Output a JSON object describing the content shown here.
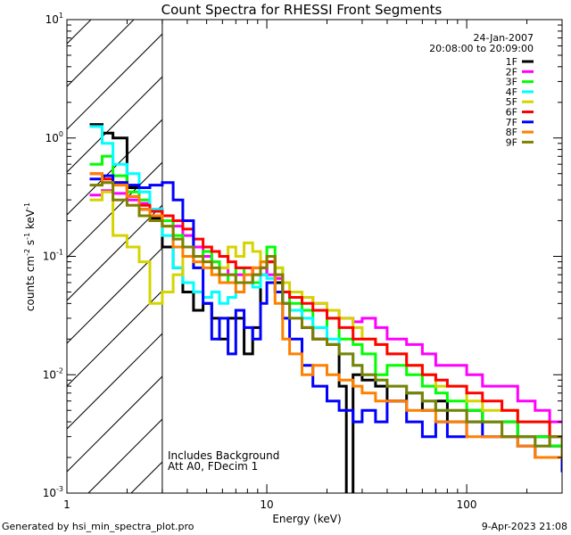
{
  "chart_data": {
    "type": "line",
    "title": "Count Spectra for RHESSI Front Segments",
    "xlabel": "Energy (keV)",
    "ylabel": {
      "base": "counts cm",
      "exp1": "-2",
      "mid": " s",
      "exp2": "-1",
      "unit": " keV",
      "exp3": "-1"
    },
    "xscale": "log",
    "yscale": "log",
    "xlim": [
      1,
      300
    ],
    "ylim": [
      0.001,
      10
    ],
    "xticks": [
      {
        "value": 1,
        "label": "1"
      },
      {
        "value": 10,
        "label": "10"
      },
      {
        "value": 100,
        "label": "100"
      }
    ],
    "yticks": [
      {
        "value": 10,
        "base": "10",
        "exp": "1"
      },
      {
        "value": 1,
        "base": "10",
        "exp": "0"
      },
      {
        "value": 0.1,
        "base": "10",
        "exp": "-1"
      },
      {
        "value": 0.01,
        "base": "10",
        "exp": "-2"
      },
      {
        "value": 0.001,
        "base": "10",
        "exp": "-3"
      }
    ],
    "date": "24-Jan-2007",
    "time_range": "20:08:00 to 20:09:00",
    "annotation_lines": [
      "Includes Background",
      "Att A0, FDecim 1"
    ],
    "hatched_below_keV": 3,
    "legend_position": "top-right",
    "series": [
      {
        "name": "1F",
        "color": "#000000",
        "x": [
          1.3,
          1.5,
          1.7,
          2.0,
          2.3,
          2.6,
          3.0,
          3.4,
          3.8,
          4.3,
          4.8,
          5.3,
          5.8,
          6.4,
          7.0,
          7.7,
          8.5,
          9.3,
          10.0,
          11,
          12,
          13,
          15,
          17,
          20,
          23,
          25,
          27,
          30,
          35,
          40,
          50,
          60,
          70,
          80,
          100,
          120,
          150,
          180,
          220,
          260,
          300
        ],
        "y": [
          1.3,
          1.1,
          1.0,
          0.38,
          0.25,
          0.21,
          0.12,
          0.08,
          0.05,
          0.035,
          0.04,
          0.03,
          0.02,
          0.03,
          0.03,
          0.015,
          0.025,
          0.07,
          0.09,
          0.06,
          0.04,
          0.035,
          0.025,
          0.02,
          0.018,
          0.008,
          0.0008,
          0.01,
          0.009,
          0.008,
          0.006,
          0.007,
          0.005,
          0.006,
          0.004,
          0.005,
          0.004,
          0.004,
          0.003,
          0.003,
          0.0025,
          0.002
        ]
      },
      {
        "name": "2F",
        "color": "#ff00ff",
        "x": [
          1.3,
          1.5,
          1.7,
          2.0,
          2.3,
          2.6,
          3.0,
          3.4,
          3.8,
          4.3,
          4.8,
          5.3,
          5.8,
          6.4,
          7.0,
          7.7,
          8.5,
          9.3,
          10.0,
          11,
          12,
          13,
          15,
          17,
          20,
          23,
          27,
          30,
          35,
          40,
          50,
          60,
          70,
          80,
          100,
          120,
          150,
          180,
          220,
          260,
          300
        ],
        "y": [
          0.33,
          0.36,
          0.34,
          0.3,
          0.28,
          0.25,
          0.22,
          0.18,
          0.15,
          0.12,
          0.1,
          0.09,
          0.08,
          0.07,
          0.07,
          0.06,
          0.08,
          0.08,
          0.07,
          0.065,
          0.05,
          0.05,
          0.045,
          0.04,
          0.035,
          0.03,
          0.028,
          0.03,
          0.025,
          0.02,
          0.018,
          0.015,
          0.012,
          0.012,
          0.01,
          0.008,
          0.008,
          0.006,
          0.005,
          0.004,
          0.004
        ]
      },
      {
        "name": "3F",
        "color": "#00ff00",
        "x": [
          1.3,
          1.5,
          1.7,
          2.0,
          2.3,
          2.6,
          3.0,
          3.4,
          3.8,
          4.3,
          4.8,
          5.3,
          5.8,
          6.4,
          7.0,
          7.7,
          8.5,
          9.3,
          10.0,
          11,
          12,
          13,
          15,
          17,
          20,
          23,
          27,
          30,
          35,
          40,
          50,
          60,
          70,
          80,
          100,
          120,
          150,
          180,
          220,
          260,
          300
        ],
        "y": [
          0.6,
          0.7,
          0.48,
          0.35,
          0.3,
          0.22,
          0.2,
          0.15,
          0.12,
          0.1,
          0.11,
          0.09,
          0.07,
          0.06,
          0.08,
          0.07,
          0.06,
          0.09,
          0.12,
          0.08,
          0.05,
          0.04,
          0.035,
          0.025,
          0.03,
          0.02,
          0.018,
          0.015,
          0.01,
          0.012,
          0.01,
          0.008,
          0.007,
          0.006,
          0.005,
          0.004,
          0.004,
          0.003,
          0.003,
          0.0025,
          0.003
        ]
      },
      {
        "name": "4F",
        "color": "#00ffff",
        "x": [
          1.3,
          1.5,
          1.7,
          2.0,
          2.3,
          2.6,
          3.0,
          3.4,
          3.8,
          4.3,
          4.8,
          5.3,
          5.8,
          6.4,
          7.0,
          7.7,
          8.5,
          9.3,
          10.0,
          11,
          12,
          13,
          15,
          17,
          20,
          23,
          27,
          30,
          35,
          40,
          50,
          60,
          70,
          80,
          100,
          120,
          150,
          180,
          220,
          260,
          300
        ],
        "y": [
          1.25,
          0.9,
          0.6,
          0.5,
          0.35,
          0.25,
          0.15,
          0.08,
          0.06,
          0.05,
          0.045,
          0.05,
          0.04,
          0.045,
          0.05,
          0.06,
          0.055,
          0.07,
          0.065,
          0.05,
          0.04,
          0.035,
          0.03,
          0.025,
          0.02,
          0.015,
          0.012,
          0.01,
          0.009,
          0.008,
          0.007,
          0.006,
          0.005,
          0.005,
          0.004,
          0.004,
          0.003,
          0.003,
          0.0025,
          0.003,
          0.002
        ]
      },
      {
        "name": "5F",
        "color": "#d4d400",
        "x": [
          1.3,
          1.5,
          1.7,
          2.0,
          2.3,
          2.6,
          3.0,
          3.4,
          3.8,
          4.3,
          4.8,
          5.3,
          5.8,
          6.4,
          7.0,
          7.7,
          8.5,
          9.3,
          10.0,
          11,
          12,
          13,
          15,
          17,
          20,
          23,
          27,
          30,
          35,
          40,
          50,
          60,
          70,
          80,
          100,
          120,
          150,
          180,
          220,
          260,
          300
        ],
        "y": [
          0.3,
          0.35,
          0.15,
          0.12,
          0.09,
          0.04,
          0.05,
          0.07,
          0.1,
          0.08,
          0.09,
          0.07,
          0.08,
          0.12,
          0.1,
          0.13,
          0.11,
          0.09,
          0.1,
          0.08,
          0.06,
          0.05,
          0.045,
          0.04,
          0.035,
          0.03,
          0.025,
          0.02,
          0.018,
          0.015,
          0.012,
          0.01,
          0.008,
          0.008,
          0.006,
          0.005,
          0.005,
          0.004,
          0.004,
          0.003,
          0.003
        ]
      },
      {
        "name": "6F",
        "color": "#ff0000",
        "x": [
          1.3,
          1.5,
          1.7,
          2.0,
          2.3,
          2.6,
          3.0,
          3.4,
          3.8,
          4.3,
          4.8,
          5.3,
          5.8,
          6.4,
          7.0,
          7.7,
          8.5,
          9.3,
          10.0,
          11,
          12,
          13,
          15,
          17,
          20,
          23,
          27,
          30,
          35,
          40,
          50,
          60,
          70,
          80,
          100,
          120,
          150,
          180,
          220,
          260,
          300
        ],
        "y": [
          0.5,
          0.45,
          0.42,
          0.32,
          0.27,
          0.24,
          0.22,
          0.2,
          0.17,
          0.14,
          0.12,
          0.11,
          0.1,
          0.09,
          0.08,
          0.08,
          0.07,
          0.08,
          0.09,
          0.07,
          0.05,
          0.045,
          0.04,
          0.035,
          0.03,
          0.025,
          0.02,
          0.02,
          0.018,
          0.015,
          0.012,
          0.01,
          0.009,
          0.008,
          0.007,
          0.006,
          0.005,
          0.004,
          0.004,
          0.003,
          0.003
        ]
      },
      {
        "name": "7F",
        "color": "#0000ff",
        "x": [
          1.3,
          1.5,
          1.7,
          2.0,
          2.3,
          2.6,
          3.0,
          3.4,
          3.8,
          4.3,
          4.8,
          5.3,
          5.8,
          6.4,
          7.0,
          7.7,
          8.5,
          9.3,
          10.0,
          11,
          12,
          13,
          15,
          17,
          20,
          23,
          27,
          30,
          35,
          40,
          50,
          60,
          70,
          80,
          100,
          120,
          150,
          180,
          220,
          260,
          300
        ],
        "y": [
          0.45,
          0.48,
          0.42,
          0.4,
          0.38,
          0.4,
          0.42,
          0.3,
          0.2,
          0.08,
          0.04,
          0.02,
          0.03,
          0.015,
          0.035,
          0.025,
          0.02,
          0.04,
          0.06,
          0.05,
          0.03,
          0.02,
          0.012,
          0.008,
          0.006,
          0.005,
          0.004,
          0.005,
          0.004,
          0.006,
          0.004,
          0.003,
          0.004,
          0.003,
          0.004,
          0.003,
          0.003,
          0.0025,
          0.002,
          0.002,
          0.0015
        ]
      },
      {
        "name": "8F",
        "color": "#ff8000",
        "x": [
          1.3,
          1.5,
          1.7,
          2.0,
          2.3,
          2.6,
          3.0,
          3.4,
          3.8,
          4.3,
          4.8,
          5.3,
          5.8,
          6.4,
          7.0,
          7.7,
          8.5,
          9.3,
          10.0,
          11,
          12,
          13,
          15,
          17,
          20,
          23,
          27,
          30,
          35,
          40,
          50,
          60,
          70,
          80,
          100,
          120,
          150,
          180,
          220,
          260,
          300
        ],
        "y": [
          0.5,
          0.42,
          0.4,
          0.32,
          0.25,
          0.22,
          0.18,
          0.12,
          0.1,
          0.09,
          0.08,
          0.07,
          0.06,
          0.06,
          0.05,
          0.07,
          0.08,
          0.09,
          0.1,
          0.04,
          0.02,
          0.015,
          0.01,
          0.012,
          0.01,
          0.009,
          0.008,
          0.007,
          0.006,
          0.006,
          0.005,
          0.005,
          0.004,
          0.004,
          0.003,
          0.003,
          0.003,
          0.0025,
          0.002,
          0.002,
          0.002
        ]
      },
      {
        "name": "9F",
        "color": "#808000",
        "x": [
          1.3,
          1.5,
          1.7,
          2.0,
          2.3,
          2.6,
          3.0,
          3.4,
          3.8,
          4.3,
          4.8,
          5.3,
          5.8,
          6.4,
          7.0,
          7.7,
          8.5,
          9.3,
          10.0,
          11,
          12,
          13,
          15,
          17,
          20,
          23,
          27,
          30,
          35,
          40,
          50,
          60,
          70,
          80,
          100,
          120,
          150,
          180,
          220,
          260,
          300
        ],
        "y": [
          0.4,
          0.42,
          0.3,
          0.27,
          0.22,
          0.2,
          0.18,
          0.14,
          0.12,
          0.1,
          0.09,
          0.08,
          0.07,
          0.07,
          0.06,
          0.06,
          0.07,
          0.08,
          0.1,
          0.07,
          0.04,
          0.03,
          0.025,
          0.02,
          0.018,
          0.015,
          0.012,
          0.01,
          0.009,
          0.008,
          0.007,
          0.006,
          0.005,
          0.005,
          0.004,
          0.004,
          0.003,
          0.003,
          0.0025,
          0.003,
          0.002
        ]
      }
    ]
  },
  "footer": {
    "generated_by": "Generated by hsi_min_spectra_plot.pro",
    "timestamp": "9-Apr-2023 21:08"
  }
}
